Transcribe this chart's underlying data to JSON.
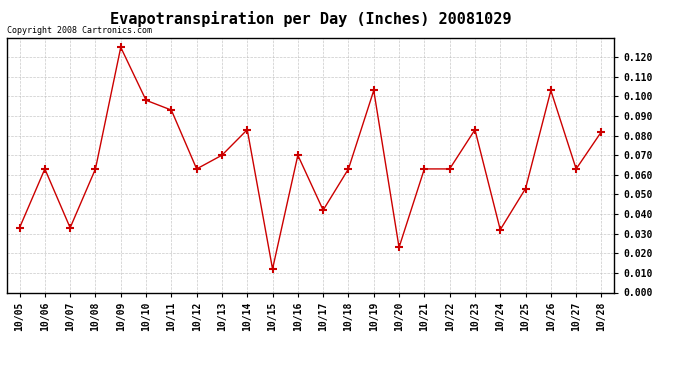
{
  "title": "Evapotranspiration per Day (Inches) 20081029",
  "copyright_text": "Copyright 2008 Cartronics.com",
  "x_labels": [
    "10/05",
    "10/06",
    "10/07",
    "10/08",
    "10/09",
    "10/10",
    "10/11",
    "10/12",
    "10/13",
    "10/14",
    "10/15",
    "10/16",
    "10/17",
    "10/18",
    "10/19",
    "10/20",
    "10/21",
    "10/22",
    "10/23",
    "10/24",
    "10/25",
    "10/26",
    "10/27",
    "10/28"
  ],
  "y_values": [
    0.033,
    0.063,
    0.033,
    0.063,
    0.125,
    0.098,
    0.093,
    0.063,
    0.07,
    0.083,
    0.012,
    0.07,
    0.042,
    0.063,
    0.103,
    0.023,
    0.063,
    0.063,
    0.083,
    0.032,
    0.053,
    0.103,
    0.063,
    0.082
  ],
  "line_color": "#cc0000",
  "marker": "+",
  "marker_size": 6,
  "marker_color": "#cc0000",
  "ylim": [
    0.0,
    0.13
  ],
  "yticks": [
    0.0,
    0.01,
    0.02,
    0.03,
    0.04,
    0.05,
    0.06,
    0.07,
    0.08,
    0.09,
    0.1,
    0.11,
    0.12
  ],
  "background_color": "#ffffff",
  "grid_color": "#bbbbbb",
  "title_fontsize": 11,
  "copyright_fontsize": 6,
  "tick_fontsize": 7,
  "linewidth": 1.0
}
